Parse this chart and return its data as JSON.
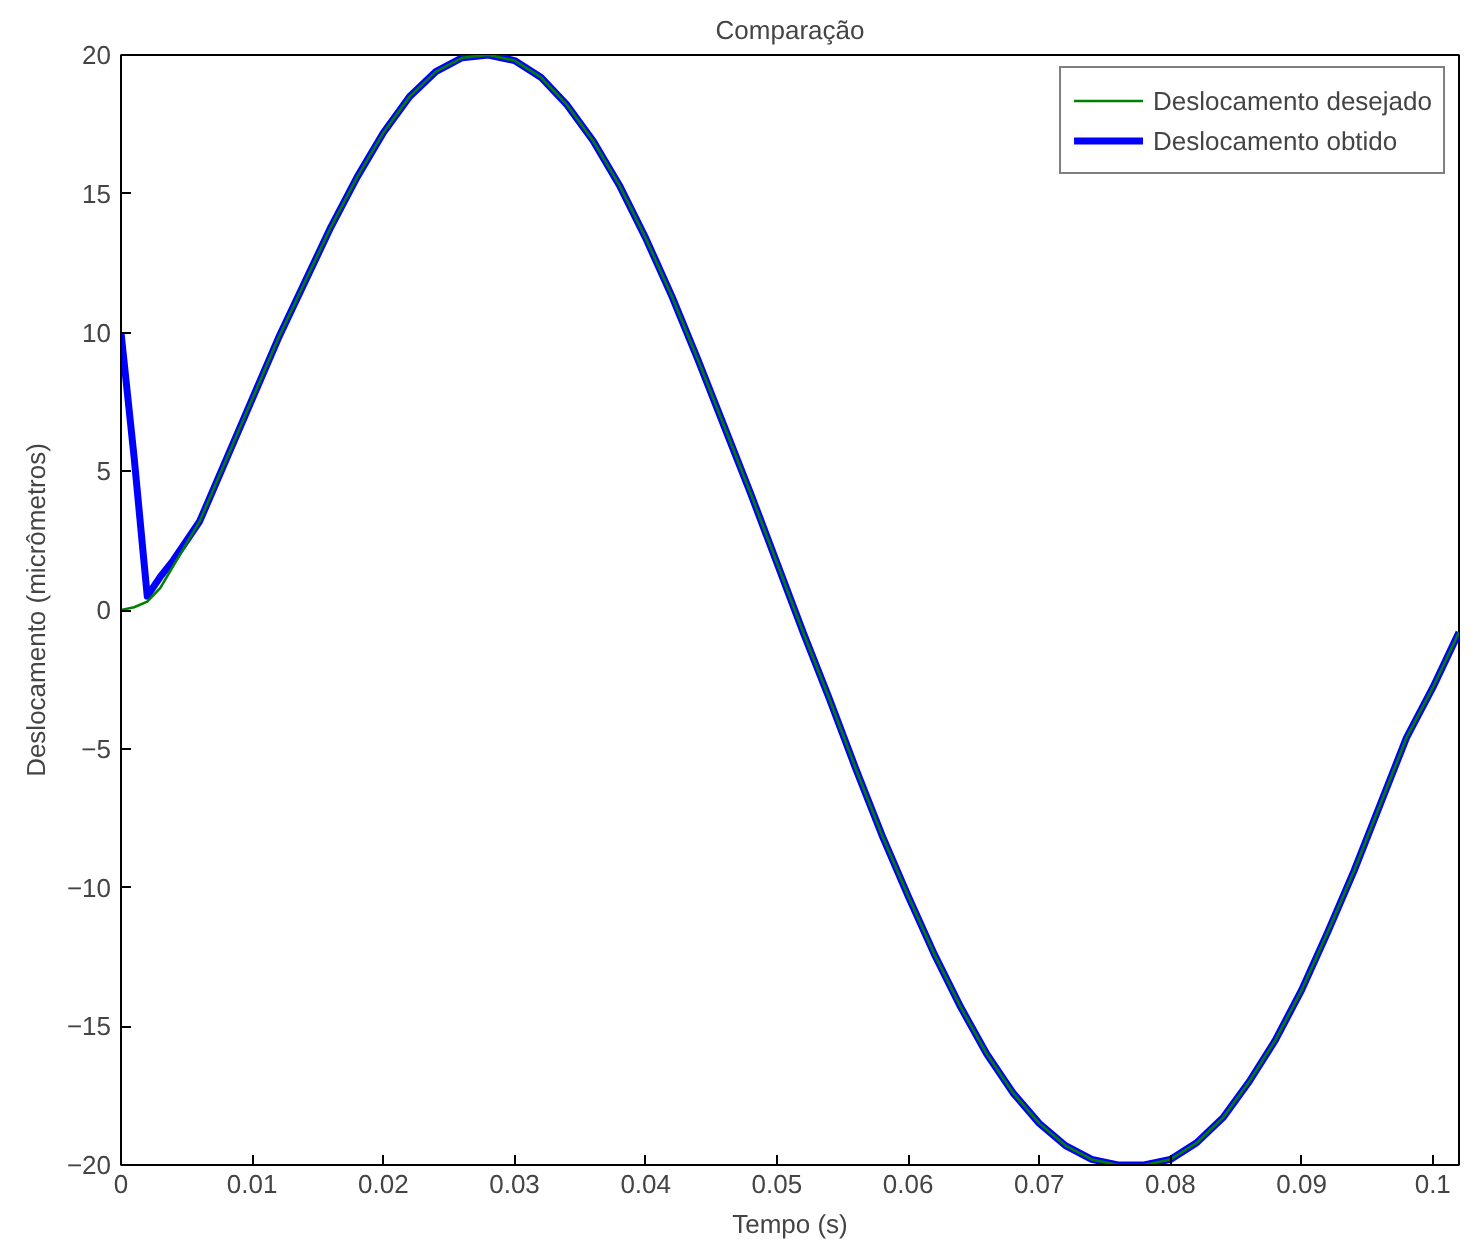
{
  "chart_data": {
    "type": "line",
    "title": "Comparação",
    "xlabel": "Tempo (s)",
    "ylabel": "Deslocamento (micrômetros)",
    "x": [
      0,
      0.001,
      0.002,
      0.003,
      0.004,
      0.006,
      0.008,
      0.01,
      0.012,
      0.014,
      0.016,
      0.018,
      0.02,
      0.022,
      0.024,
      0.026,
      0.028,
      0.03,
      0.032,
      0.034,
      0.036,
      0.038,
      0.04,
      0.042,
      0.044,
      0.046,
      0.048,
      0.05,
      0.052,
      0.054,
      0.056,
      0.058,
      0.06,
      0.062,
      0.064,
      0.066,
      0.068,
      0.07,
      0.072,
      0.074,
      0.076,
      0.078,
      0.08,
      0.082,
      0.084,
      0.086,
      0.088,
      0.09,
      0.092,
      0.094,
      0.096,
      0.098,
      0.1,
      0.102
    ],
    "series": [
      {
        "name": "Deslocamento desejado",
        "color": "#008000",
        "values": [
          0,
          0.1,
          0.3,
          0.8,
          1.6,
          3.2,
          5.4,
          7.6,
          9.8,
          11.8,
          13.8,
          15.6,
          17.2,
          18.5,
          19.4,
          19.9,
          20,
          19.8,
          19.2,
          18.2,
          16.9,
          15.3,
          13.4,
          11.3,
          9.0,
          6.6,
          4.2,
          1.7,
          -0.8,
          -3.2,
          -5.7,
          -8.1,
          -10.3,
          -12.4,
          -14.3,
          -16,
          -17.4,
          -18.5,
          -19.3,
          -19.8,
          -20,
          -20,
          -19.8,
          -19.2,
          -18.3,
          -17,
          -15.5,
          -13.7,
          -11.6,
          -9.4,
          -7,
          -4.6,
          -2.8,
          -0.8
        ]
      },
      {
        "name": "Deslocamento obtido",
        "color": "#0000ff",
        "values": [
          10,
          5.5,
          0.5,
          1.2,
          1.8,
          3.2,
          5.4,
          7.6,
          9.8,
          11.8,
          13.8,
          15.6,
          17.2,
          18.5,
          19.4,
          19.9,
          20,
          19.8,
          19.2,
          18.2,
          16.9,
          15.3,
          13.4,
          11.3,
          9.0,
          6.6,
          4.2,
          1.7,
          -0.8,
          -3.2,
          -5.7,
          -8.1,
          -10.3,
          -12.4,
          -14.3,
          -16,
          -17.4,
          -18.5,
          -19.3,
          -19.8,
          -20,
          -20,
          -19.8,
          -19.2,
          -18.3,
          -17,
          -15.5,
          -13.7,
          -11.6,
          -9.4,
          -7,
          -4.6,
          -2.8,
          -0.8
        ]
      }
    ],
    "xlim": [
      0,
      0.102
    ],
    "ylim": [
      -20,
      20
    ],
    "xticks": [
      0,
      0.01,
      0.02,
      0.03,
      0.04,
      0.05,
      0.06,
      0.07,
      0.08,
      0.09,
      0.1
    ],
    "yticks": [
      -20,
      -15,
      -10,
      -5,
      0,
      5,
      10,
      15,
      20
    ],
    "grid": false,
    "legend": "top right",
    "marker": "none",
    "line_style": "solid"
  }
}
